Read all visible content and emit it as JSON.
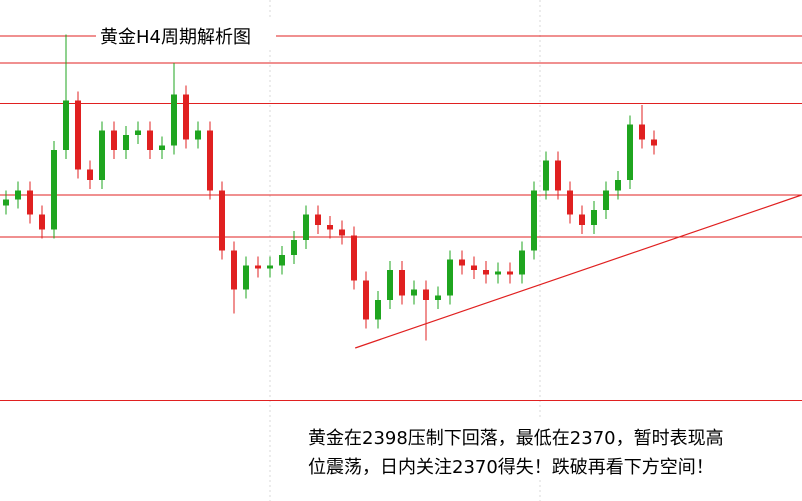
{
  "chart_data": {
    "type": "candlestick",
    "title": "黄金H4周期解析图",
    "annotation": [
      "黄金在2398压制下回落，最低在2370，暂时表现高",
      "位震荡，日内关注2370得失！跌破再看下方空间！"
    ],
    "ylim": [
      2133,
      2467
    ],
    "up_color": "#1fa51f",
    "down_color": "#e02020",
    "line_color": "#e02020",
    "levels": [
      2443,
      2425,
      2398,
      2337,
      2309,
      2200
    ],
    "trendlines": [
      {
        "x": [
          29.1,
          66.3
        ],
        "y": [
          2235,
          2337
        ]
      }
    ],
    "open": [
      2330,
      2334,
      2340,
      2324,
      2314,
      2367,
      2400,
      2354,
      2347,
      2380,
      2367,
      2377,
      2380,
      2367,
      2370,
      2404,
      2374,
      2380,
      2340,
      2300,
      2274,
      2290,
      2288,
      2290,
      2297,
      2307,
      2324,
      2317,
      2314,
      2310,
      2280,
      2254,
      2267,
      2287,
      2270,
      2274,
      2267,
      2270,
      2294,
      2290,
      2287,
      2284,
      2286,
      2284,
      2300,
      2340,
      2360,
      2340,
      2324,
      2317,
      2327,
      2340,
      2347,
      2384,
      2374
    ],
    "high": [
      2340,
      2346,
      2346,
      2330,
      2373,
      2444,
      2406,
      2360,
      2386,
      2386,
      2383,
      2386,
      2386,
      2376,
      2425,
      2410,
      2386,
      2386,
      2346,
      2306,
      2296,
      2296,
      2296,
      2303,
      2313,
      2330,
      2330,
      2323,
      2320,
      2316,
      2286,
      2273,
      2293,
      2293,
      2280,
      2280,
      2276,
      2300,
      2300,
      2296,
      2293,
      2292,
      2292,
      2306,
      2346,
      2366,
      2366,
      2346,
      2330,
      2333,
      2346,
      2353,
      2390,
      2397,
      2380
    ],
    "low": [
      2324,
      2328,
      2318,
      2308,
      2308,
      2361,
      2348,
      2341,
      2341,
      2361,
      2361,
      2371,
      2361,
      2361,
      2364,
      2368,
      2368,
      2334,
      2294,
      2258,
      2268,
      2282,
      2282,
      2284,
      2291,
      2301,
      2311,
      2308,
      2304,
      2274,
      2248,
      2248,
      2261,
      2264,
      2264,
      2240,
      2261,
      2264,
      2284,
      2281,
      2278,
      2278,
      2278,
      2278,
      2294,
      2334,
      2334,
      2318,
      2311,
      2311,
      2321,
      2334,
      2341,
      2368,
      2364
    ],
    "close": [
      2334,
      2340,
      2324,
      2314,
      2367,
      2400,
      2354,
      2347,
      2380,
      2367,
      2377,
      2380,
      2367,
      2370,
      2404,
      2374,
      2380,
      2340,
      2300,
      2274,
      2290,
      2288,
      2290,
      2297,
      2307,
      2324,
      2317,
      2314,
      2310,
      2280,
      2254,
      2267,
      2287,
      2270,
      2274,
      2267,
      2270,
      2294,
      2290,
      2287,
      2284,
      2286,
      2284,
      2300,
      2340,
      2360,
      2340,
      2324,
      2317,
      2327,
      2340,
      2347,
      2384,
      2374,
      2370
    ]
  }
}
